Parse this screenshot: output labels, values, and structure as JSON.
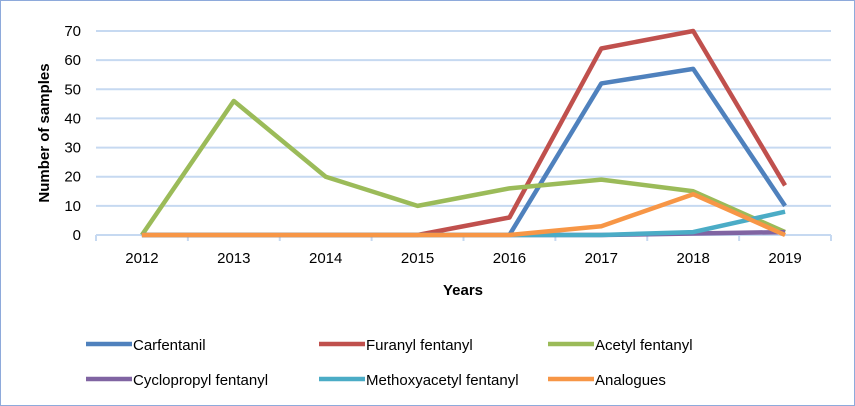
{
  "chart_data": {
    "type": "line",
    "title": "",
    "xlabel": "Years",
    "ylabel": "Number of samples",
    "categories": [
      "2012",
      "2013",
      "2014",
      "2015",
      "2016",
      "2017",
      "2018",
      "2019"
    ],
    "ylim": [
      0,
      70
    ],
    "yticks": [
      0,
      10,
      20,
      30,
      40,
      50,
      60,
      70
    ],
    "grid": true,
    "legend": "bottom",
    "series": [
      {
        "name": "Carfentanil",
        "color": "#4f81bd",
        "values": [
          null,
          null,
          null,
          null,
          0,
          52,
          57,
          10
        ]
      },
      {
        "name": "Furanyl fentanyl",
        "color": "#c0504d",
        "values": [
          0,
          0,
          0,
          0,
          6,
          64,
          70,
          17
        ]
      },
      {
        "name": "Acetyl fentanyl",
        "color": "#9bbb59",
        "values": [
          0,
          46,
          20,
          10,
          16,
          19,
          15,
          1
        ]
      },
      {
        "name": "Cyclopropyl fentanyl",
        "color": "#8064a2",
        "values": [
          0,
          0,
          0,
          0,
          0,
          0,
          0.5,
          1
        ]
      },
      {
        "name": "Methoxyacetyl fentanyl",
        "color": "#4bacc6",
        "values": [
          0,
          0,
          0,
          0,
          0,
          0,
          1,
          8
        ]
      },
      {
        "name": "Analogues",
        "color": "#f79646",
        "values": [
          0,
          0,
          0,
          0,
          0,
          3,
          14,
          0
        ]
      }
    ]
  }
}
